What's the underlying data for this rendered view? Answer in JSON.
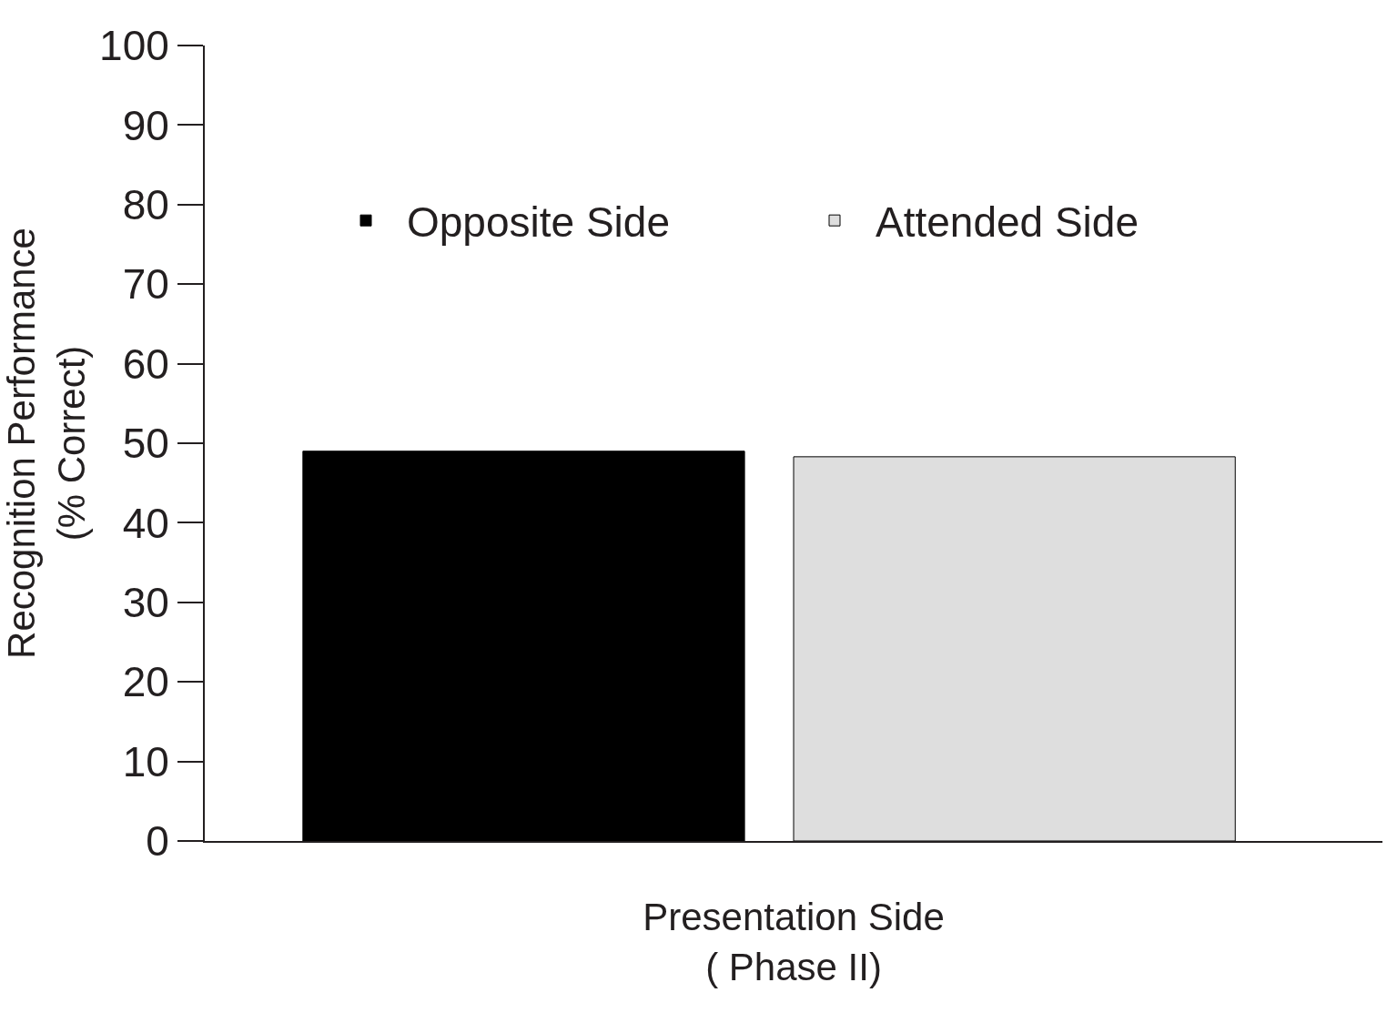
{
  "chart_data": {
    "type": "bar",
    "xlabel": "Presentation Side\n( Phase II)",
    "ylabel": "Recognition Performance\n(% Correct)",
    "categories": [
      null,
      null
    ],
    "series": [
      {
        "name": "Opposite Side",
        "color": "#000000",
        "values": [
          49,
          null
        ]
      },
      {
        "name": "Attended Side",
        "color": "#dedede",
        "values": [
          null,
          48.3
        ]
      }
    ],
    "ylim": [
      0,
      100
    ],
    "yticks": [
      0,
      10,
      20,
      30,
      40,
      50,
      60,
      70,
      80,
      90,
      100
    ],
    "legend": "top"
  }
}
